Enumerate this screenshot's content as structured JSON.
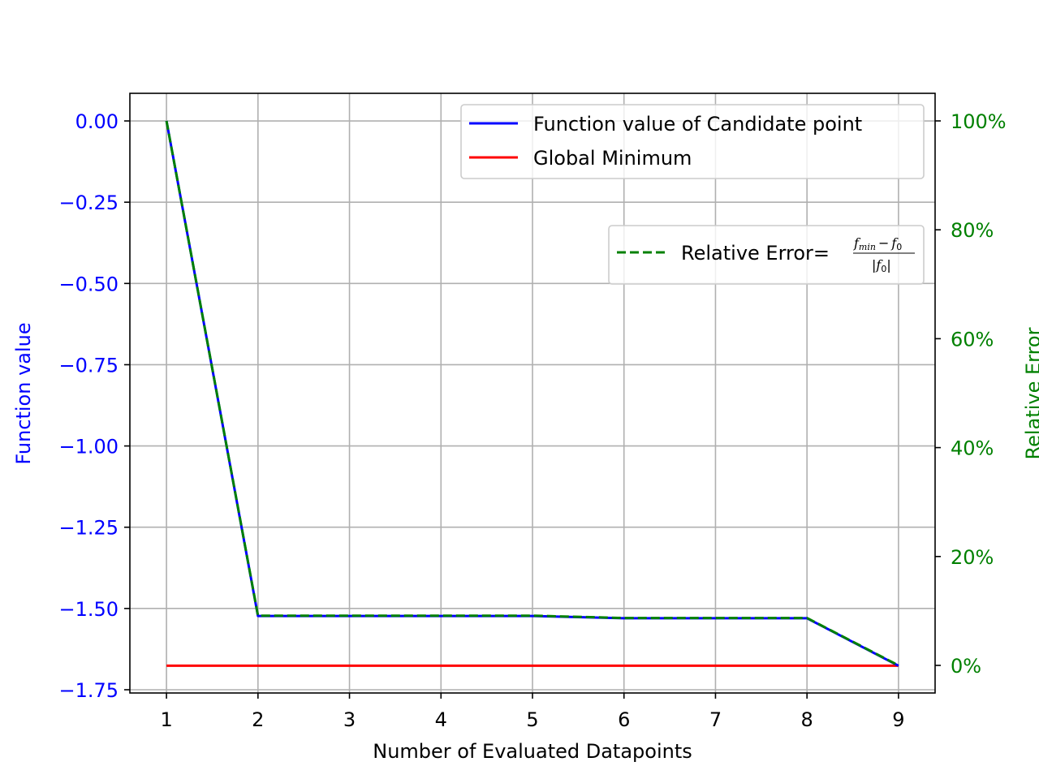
{
  "chart_data": {
    "type": "line",
    "xlabel": "Number of Evaluated Datapoints",
    "ylabel": "Function value",
    "y2label": "Relative Error",
    "x": [
      1,
      2,
      3,
      4,
      5,
      6,
      7,
      8,
      9
    ],
    "xticks": [
      "1",
      "2",
      "3",
      "4",
      "5",
      "6",
      "7",
      "8",
      "9"
    ],
    "xlim": [
      0.6,
      9.4
    ],
    "ylim": [
      -1.76,
      0.085
    ],
    "yticks": [
      0.0,
      -0.25,
      -0.5,
      -0.75,
      -1.0,
      -1.25,
      -1.5,
      -1.75
    ],
    "ytick_labels": [
      "0.00",
      "−0.25",
      "−0.50",
      "−0.75",
      "−1.00",
      "−1.25",
      "−1.50",
      "−1.75"
    ],
    "y2ticks": [
      1.0,
      0.8,
      0.6,
      0.4,
      0.2,
      0.0
    ],
    "y2tick_labels": [
      "100%",
      "80%",
      "60%",
      "40%",
      "20%",
      "0%"
    ],
    "grid": true,
    "series": [
      {
        "name": "Function value of Candidate point",
        "axis": "left",
        "color": "#0000ff",
        "style": "solid",
        "values": [
          0.0,
          -1.523,
          -1.523,
          -1.523,
          -1.523,
          -1.53,
          -1.53,
          -1.53,
          -1.676
        ]
      },
      {
        "name": "Global Minimum",
        "axis": "left",
        "color": "#ff0000",
        "style": "solid",
        "values": [
          -1.676,
          -1.676,
          -1.676,
          -1.676,
          -1.676,
          -1.676,
          -1.676,
          -1.676,
          -1.676
        ]
      },
      {
        "name": "Relative Error",
        "axis": "right",
        "color": "#008000",
        "style": "dashed",
        "values": [
          1.0,
          0.0913,
          0.0913,
          0.0913,
          0.0913,
          0.0871,
          0.0871,
          0.0871,
          0.0
        ]
      }
    ],
    "legend1": {
      "placement": "upper right",
      "entries": [
        "Function value of Candidate point",
        "Global Minimum"
      ]
    },
    "legend2": {
      "placement": "upper right, below first legend",
      "label_prefix": "Relative Error=",
      "numerator_f": "f",
      "numerator_sub": "min",
      "minus": "−",
      "f0": "f",
      "f0_sub": "0",
      "denominator_bar": "|",
      "denominator_f": "f",
      "denominator_sub": "0"
    },
    "colors": {
      "left_axis": "#0000ff",
      "right_axis": "#008000",
      "grid": "#b0b0b0"
    }
  }
}
